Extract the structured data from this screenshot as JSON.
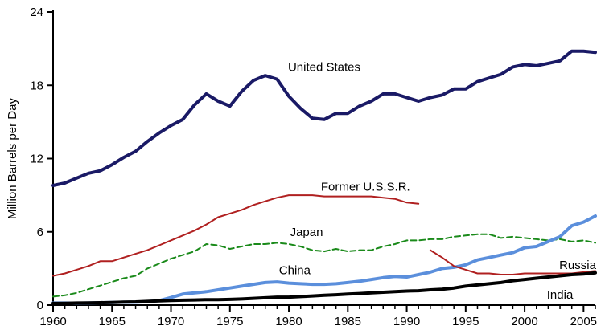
{
  "chart_data": {
    "type": "line",
    "title": "",
    "xlabel": "",
    "ylabel": "Million Barrels per Day",
    "xlim": [
      1960,
      2006
    ],
    "ylim": [
      0,
      24
    ],
    "x_ticks": [
      "1960",
      "1965",
      "1970",
      "1975",
      "1980",
      "1985",
      "1990",
      "1995",
      "2000",
      "2005"
    ],
    "y_ticks": [
      "0",
      "6",
      "12",
      "18",
      "24"
    ],
    "grid": false,
    "legend": "none (series labeled directly on chart)",
    "series": [
      {
        "name": "United States",
        "color": "#1a1a66",
        "style": "solid-thick",
        "x": [
          1960,
          1961,
          1962,
          1963,
          1964,
          1965,
          1966,
          1967,
          1968,
          1969,
          1970,
          1971,
          1972,
          1973,
          1974,
          1975,
          1976,
          1977,
          1978,
          1979,
          1980,
          1981,
          1982,
          1983,
          1984,
          1985,
          1986,
          1987,
          1988,
          1989,
          1990,
          1991,
          1992,
          1993,
          1994,
          1995,
          1996,
          1997,
          1998,
          1999,
          2000,
          2001,
          2002,
          2003,
          2004,
          2005,
          2006
        ],
        "y": [
          9.8,
          10.0,
          10.4,
          10.8,
          11.0,
          11.5,
          12.1,
          12.6,
          13.4,
          14.1,
          14.7,
          15.2,
          16.4,
          17.3,
          16.7,
          16.3,
          17.5,
          18.4,
          18.8,
          18.5,
          17.1,
          16.1,
          15.3,
          15.2,
          15.7,
          15.7,
          16.3,
          16.7,
          17.3,
          17.3,
          17.0,
          16.7,
          17.0,
          17.2,
          17.7,
          17.7,
          18.3,
          18.6,
          18.9,
          19.5,
          19.7,
          19.6,
          19.8,
          20.0,
          20.8,
          20.8,
          20.7
        ]
      },
      {
        "name": "Former U.S.S.R.",
        "color": "#b02020",
        "style": "solid-thin",
        "x": [
          1960,
          1961,
          1962,
          1963,
          1964,
          1965,
          1966,
          1967,
          1968,
          1969,
          1970,
          1971,
          1972,
          1973,
          1974,
          1975,
          1976,
          1977,
          1978,
          1979,
          1980,
          1981,
          1982,
          1983,
          1984,
          1985,
          1986,
          1987,
          1988,
          1989,
          1990,
          1991
        ],
        "y": [
          2.4,
          2.6,
          2.9,
          3.2,
          3.6,
          3.6,
          3.9,
          4.2,
          4.5,
          4.9,
          5.3,
          5.7,
          6.1,
          6.6,
          7.2,
          7.5,
          7.8,
          8.2,
          8.5,
          8.8,
          9.0,
          9.0,
          9.0,
          8.9,
          8.9,
          8.9,
          8.9,
          8.9,
          8.8,
          8.7,
          8.4,
          8.3
        ]
      },
      {
        "name": "Japan",
        "color": "#1a8a1a",
        "style": "dashed",
        "x": [
          1960,
          1961,
          1962,
          1963,
          1964,
          1965,
          1966,
          1967,
          1968,
          1969,
          1970,
          1971,
          1972,
          1973,
          1974,
          1975,
          1976,
          1977,
          1978,
          1979,
          1980,
          1981,
          1982,
          1983,
          1984,
          1985,
          1986,
          1987,
          1988,
          1989,
          1990,
          1991,
          1992,
          1993,
          1994,
          1995,
          1996,
          1997,
          1998,
          1999,
          2000,
          2001,
          2002,
          2003,
          2004,
          2005,
          2006
        ],
        "y": [
          0.7,
          0.8,
          1.0,
          1.3,
          1.6,
          1.9,
          2.2,
          2.4,
          3.0,
          3.4,
          3.8,
          4.1,
          4.4,
          5.0,
          4.9,
          4.6,
          4.8,
          5.0,
          5.0,
          5.1,
          5.0,
          4.8,
          4.5,
          4.4,
          4.6,
          4.4,
          4.5,
          4.5,
          4.8,
          5.0,
          5.3,
          5.3,
          5.4,
          5.4,
          5.6,
          5.7,
          5.8,
          5.8,
          5.5,
          5.6,
          5.5,
          5.4,
          5.3,
          5.4,
          5.2,
          5.3,
          5.1
        ]
      },
      {
        "name": "China",
        "color": "#5b8fdc",
        "style": "solid-thick",
        "x": [
          1960,
          1961,
          1962,
          1963,
          1964,
          1965,
          1966,
          1967,
          1968,
          1969,
          1970,
          1971,
          1972,
          1973,
          1974,
          1975,
          1976,
          1977,
          1978,
          1979,
          1980,
          1981,
          1982,
          1983,
          1984,
          1985,
          1986,
          1987,
          1988,
          1989,
          1990,
          1991,
          1992,
          1993,
          1994,
          1995,
          1996,
          1997,
          1998,
          1999,
          2000,
          2001,
          2002,
          2003,
          2004,
          2005,
          2006
        ],
        "y": [
          0.17,
          0.17,
          0.16,
          0.17,
          0.2,
          0.22,
          0.24,
          0.24,
          0.28,
          0.37,
          0.62,
          0.9,
          1.0,
          1.1,
          1.25,
          1.4,
          1.55,
          1.7,
          1.85,
          1.9,
          1.8,
          1.75,
          1.7,
          1.7,
          1.75,
          1.85,
          1.95,
          2.1,
          2.25,
          2.35,
          2.3,
          2.5,
          2.7,
          3.0,
          3.1,
          3.3,
          3.7,
          3.9,
          4.1,
          4.3,
          4.7,
          4.8,
          5.2,
          5.6,
          6.5,
          6.8,
          7.3
        ]
      },
      {
        "name": "Russia",
        "color": "#b02020",
        "style": "solid-thin",
        "x": [
          1992,
          1993,
          1994,
          1995,
          1996,
          1997,
          1998,
          1999,
          2000,
          2001,
          2002,
          2003,
          2004,
          2005,
          2006
        ],
        "y": [
          4.5,
          3.9,
          3.2,
          2.9,
          2.6,
          2.6,
          2.5,
          2.5,
          2.6,
          2.6,
          2.6,
          2.6,
          2.6,
          2.7,
          2.8
        ]
      },
      {
        "name": "India",
        "color": "#000000",
        "style": "solid-thick",
        "x": [
          1960,
          1961,
          1962,
          1963,
          1964,
          1965,
          1966,
          1967,
          1968,
          1969,
          1970,
          1971,
          1972,
          1973,
          1974,
          1975,
          1976,
          1977,
          1978,
          1979,
          1980,
          1981,
          1982,
          1983,
          1984,
          1985,
          1986,
          1987,
          1988,
          1989,
          1990,
          1991,
          1992,
          1993,
          1994,
          1995,
          1996,
          1997,
          1998,
          1999,
          2000,
          2001,
          2002,
          2003,
          2004,
          2005,
          2006
        ],
        "y": [
          0.14,
          0.15,
          0.17,
          0.18,
          0.2,
          0.22,
          0.25,
          0.26,
          0.3,
          0.35,
          0.38,
          0.4,
          0.42,
          0.45,
          0.45,
          0.47,
          0.5,
          0.55,
          0.6,
          0.65,
          0.65,
          0.7,
          0.75,
          0.8,
          0.85,
          0.9,
          0.95,
          1.0,
          1.05,
          1.1,
          1.15,
          1.18,
          1.25,
          1.3,
          1.4,
          1.55,
          1.65,
          1.75,
          1.85,
          2.0,
          2.1,
          2.2,
          2.3,
          2.4,
          2.5,
          2.55,
          2.65
        ]
      }
    ],
    "annotations": [
      {
        "text": "United States",
        "x": 1983,
        "y": 19.5
      },
      {
        "text": "Former U.S.S.R.",
        "x": 1986.5,
        "y": 9.7
      },
      {
        "text": "Japan",
        "x": 1981.5,
        "y": 6.0
      },
      {
        "text": "China",
        "x": 1980.5,
        "y": 2.85
      },
      {
        "text": "Russia",
        "x": 2004.5,
        "y": 3.3
      },
      {
        "text": "India",
        "x": 2003,
        "y": 0.85
      }
    ]
  }
}
